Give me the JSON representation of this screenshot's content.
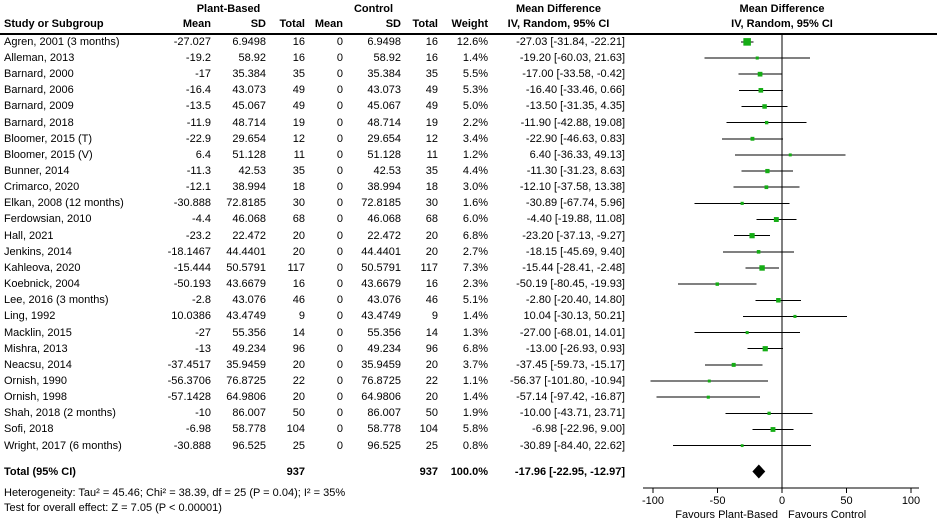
{
  "table": {
    "groups": {
      "experimental": "Plant-Based",
      "control": "Control",
      "md_header_line1": "Mean Difference",
      "md_header_line2": "IV, Random, 95% CI"
    },
    "columns": {
      "study": "Study or Subgroup",
      "mean": "Mean",
      "sd": "SD",
      "total": "Total",
      "weight": "Weight"
    },
    "rows": [
      [
        "Agren, 2001 (3 months)",
        "-27.027",
        "6.9498",
        "16",
        "0",
        "6.9498",
        "16",
        "12.6%",
        "-27.03 [-31.84, -22.21]"
      ],
      [
        "Alleman, 2013",
        "-19.2",
        "58.92",
        "16",
        "0",
        "58.92",
        "16",
        "1.4%",
        "-19.20 [-60.03, 21.63]"
      ],
      [
        "Barnard, 2000",
        "-17",
        "35.384",
        "35",
        "0",
        "35.384",
        "35",
        "5.5%",
        "-17.00 [-33.58, -0.42]"
      ],
      [
        "Barnard, 2006",
        "-16.4",
        "43.073",
        "49",
        "0",
        "43.073",
        "49",
        "5.3%",
        "-16.40 [-33.46, 0.66]"
      ],
      [
        "Barnard, 2009",
        "-13.5",
        "45.067",
        "49",
        "0",
        "45.067",
        "49",
        "5.0%",
        "-13.50 [-31.35, 4.35]"
      ],
      [
        "Barnard, 2018",
        "-11.9",
        "48.714",
        "19",
        "0",
        "48.714",
        "19",
        "2.2%",
        "-11.90 [-42.88, 19.08]"
      ],
      [
        "Bloomer, 2015 (T)",
        "-22.9",
        "29.654",
        "12",
        "0",
        "29.654",
        "12",
        "3.4%",
        "-22.90 [-46.63, 0.83]"
      ],
      [
        "Bloomer, 2015 (V)",
        "6.4",
        "51.128",
        "11",
        "0",
        "51.128",
        "11",
        "1.2%",
        "6.40 [-36.33, 49.13]"
      ],
      [
        "Bunner, 2014",
        "-11.3",
        "42.53",
        "35",
        "0",
        "42.53",
        "35",
        "4.4%",
        "-11.30 [-31.23, 8.63]"
      ],
      [
        "Crimarco, 2020",
        "-12.1",
        "38.994",
        "18",
        "0",
        "38.994",
        "18",
        "3.0%",
        "-12.10 [-37.58, 13.38]"
      ],
      [
        "Elkan, 2008 (12 months)",
        "-30.888",
        "72.8185",
        "30",
        "0",
        "72.8185",
        "30",
        "1.6%",
        "-30.89 [-67.74, 5.96]"
      ],
      [
        "Ferdowsian, 2010",
        "-4.4",
        "46.068",
        "68",
        "0",
        "46.068",
        "68",
        "6.0%",
        "-4.40 [-19.88, 11.08]"
      ],
      [
        "Hall, 2021",
        "-23.2",
        "22.472",
        "20",
        "0",
        "22.472",
        "20",
        "6.8%",
        "-23.20 [-37.13, -9.27]"
      ],
      [
        "Jenkins, 2014",
        "-18.1467",
        "44.4401",
        "20",
        "0",
        "44.4401",
        "20",
        "2.7%",
        "-18.15 [-45.69, 9.40]"
      ],
      [
        "Kahleova, 2020",
        "-15.444",
        "50.5791",
        "117",
        "0",
        "50.5791",
        "117",
        "7.3%",
        "-15.44 [-28.41, -2.48]"
      ],
      [
        "Koebnick, 2004",
        "-50.193",
        "43.6679",
        "16",
        "0",
        "43.6679",
        "16",
        "2.3%",
        "-50.19 [-80.45, -19.93]"
      ],
      [
        "Lee, 2016 (3 months)",
        "-2.8",
        "43.076",
        "46",
        "0",
        "43.076",
        "46",
        "5.1%",
        "-2.80 [-20.40, 14.80]"
      ],
      [
        "Ling, 1992",
        "10.0386",
        "43.4749",
        "9",
        "0",
        "43.4749",
        "9",
        "1.4%",
        "10.04 [-30.13, 50.21]"
      ],
      [
        "Macklin, 2015",
        "-27",
        "55.356",
        "14",
        "0",
        "55.356",
        "14",
        "1.3%",
        "-27.00 [-68.01, 14.01]"
      ],
      [
        "Mishra, 2013",
        "-13",
        "49.234",
        "96",
        "0",
        "49.234",
        "96",
        "6.8%",
        "-13.00 [-26.93, 0.93]"
      ],
      [
        "Neacsu, 2014",
        "-37.4517",
        "35.9459",
        "20",
        "0",
        "35.9459",
        "20",
        "3.7%",
        "-37.45 [-59.73, -15.17]"
      ],
      [
        "Ornish, 1990",
        "-56.3706",
        "76.8725",
        "22",
        "0",
        "76.8725",
        "22",
        "1.1%",
        "-56.37 [-101.80, -10.94]"
      ],
      [
        "Ornish, 1998",
        "-57.1428",
        "64.9806",
        "20",
        "0",
        "64.9806",
        "20",
        "1.4%",
        "-57.14 [-97.42, -16.87]"
      ],
      [
        "Shah, 2018 (2 months)",
        "-10",
        "86.007",
        "50",
        "0",
        "86.007",
        "50",
        "1.9%",
        "-10.00 [-43.71, 23.71]"
      ],
      [
        "Sofi, 2018",
        "-6.98",
        "58.778",
        "104",
        "0",
        "58.778",
        "104",
        "5.8%",
        "-6.98 [-22.96, 9.00]"
      ],
      [
        "Wright, 2017 (6 months)",
        "-30.888",
        "96.525",
        "25",
        "0",
        "96.525",
        "25",
        "0.8%",
        "-30.89 [-84.40, 22.62]"
      ]
    ],
    "total_row": [
      "Total (95% CI)",
      "",
      "",
      "937",
      "",
      "",
      "937",
      "100.0%",
      "-17.96 [-22.95, -12.97]"
    ],
    "heterogeneity": "Heterogeneity: Tau² = 45.46; Chi² = 38.39, df = 25 (P = 0.04); I² = 35%",
    "overall_effect": "Test for overall effect: Z = 7.05 (P < 0.00001)"
  },
  "chart_data": {
    "type": "forest",
    "title": "Mean Difference",
    "subtitle": "IV, Random, 95% CI",
    "xticks": [
      -100,
      -50,
      0,
      50,
      100
    ],
    "xlim": [
      -108,
      108
    ],
    "favours_left": "Favours Plant-Based",
    "favours_right": "Favours Control",
    "marker_color": "#15ad15",
    "line_color": "#000000",
    "studies": [
      {
        "name": "Agren, 2001 (3 months)",
        "est": -27.03,
        "lo": -31.84,
        "hi": -22.21,
        "weight": 12.6
      },
      {
        "name": "Alleman, 2013",
        "est": -19.2,
        "lo": -60.03,
        "hi": 21.63,
        "weight": 1.4
      },
      {
        "name": "Barnard, 2000",
        "est": -17.0,
        "lo": -33.58,
        "hi": -0.42,
        "weight": 5.5
      },
      {
        "name": "Barnard, 2006",
        "est": -16.4,
        "lo": -33.46,
        "hi": 0.66,
        "weight": 5.3
      },
      {
        "name": "Barnard, 2009",
        "est": -13.5,
        "lo": -31.35,
        "hi": 4.35,
        "weight": 5.0
      },
      {
        "name": "Barnard, 2018",
        "est": -11.9,
        "lo": -42.88,
        "hi": 19.08,
        "weight": 2.2
      },
      {
        "name": "Bloomer, 2015 (T)",
        "est": -22.9,
        "lo": -46.63,
        "hi": 0.83,
        "weight": 3.4
      },
      {
        "name": "Bloomer, 2015 (V)",
        "est": 6.4,
        "lo": -36.33,
        "hi": 49.13,
        "weight": 1.2
      },
      {
        "name": "Bunner, 2014",
        "est": -11.3,
        "lo": -31.23,
        "hi": 8.63,
        "weight": 4.4
      },
      {
        "name": "Crimarco, 2020",
        "est": -12.1,
        "lo": -37.58,
        "hi": 13.38,
        "weight": 3.0
      },
      {
        "name": "Elkan, 2008 (12 months)",
        "est": -30.89,
        "lo": -67.74,
        "hi": 5.96,
        "weight": 1.6
      },
      {
        "name": "Ferdowsian, 2010",
        "est": -4.4,
        "lo": -19.88,
        "hi": 11.08,
        "weight": 6.0
      },
      {
        "name": "Hall, 2021",
        "est": -23.2,
        "lo": -37.13,
        "hi": -9.27,
        "weight": 6.8
      },
      {
        "name": "Jenkins, 2014",
        "est": -18.15,
        "lo": -45.69,
        "hi": 9.4,
        "weight": 2.7
      },
      {
        "name": "Kahleova, 2020",
        "est": -15.44,
        "lo": -28.41,
        "hi": -2.48,
        "weight": 7.3
      },
      {
        "name": "Koebnick, 2004",
        "est": -50.19,
        "lo": -80.45,
        "hi": -19.93,
        "weight": 2.3
      },
      {
        "name": "Lee, 2016 (3 months)",
        "est": -2.8,
        "lo": -20.4,
        "hi": 14.8,
        "weight": 5.1
      },
      {
        "name": "Ling, 1992",
        "est": 10.04,
        "lo": -30.13,
        "hi": 50.21,
        "weight": 1.4
      },
      {
        "name": "Macklin, 2015",
        "est": -27.0,
        "lo": -68.01,
        "hi": 14.01,
        "weight": 1.3
      },
      {
        "name": "Mishra, 2013",
        "est": -13.0,
        "lo": -26.93,
        "hi": 0.93,
        "weight": 6.8
      },
      {
        "name": "Neacsu, 2014",
        "est": -37.45,
        "lo": -59.73,
        "hi": -15.17,
        "weight": 3.7
      },
      {
        "name": "Ornish, 1990",
        "est": -56.37,
        "lo": -101.8,
        "hi": -10.94,
        "weight": 1.1
      },
      {
        "name": "Ornish, 1998",
        "est": -57.14,
        "lo": -97.42,
        "hi": -16.87,
        "weight": 1.4
      },
      {
        "name": "Shah, 2018 (2 months)",
        "est": -10.0,
        "lo": -43.71,
        "hi": 23.71,
        "weight": 1.9
      },
      {
        "name": "Sofi, 2018",
        "est": -6.98,
        "lo": -22.96,
        "hi": 9.0,
        "weight": 5.8
      },
      {
        "name": "Wright, 2017 (6 months)",
        "est": -30.89,
        "lo": -84.4,
        "hi": 22.62,
        "weight": 0.8
      }
    ],
    "total": {
      "name": "Total (95% CI)",
      "est": -17.96,
      "lo": -22.95,
      "hi": -12.97,
      "weight": 100.0
    }
  }
}
